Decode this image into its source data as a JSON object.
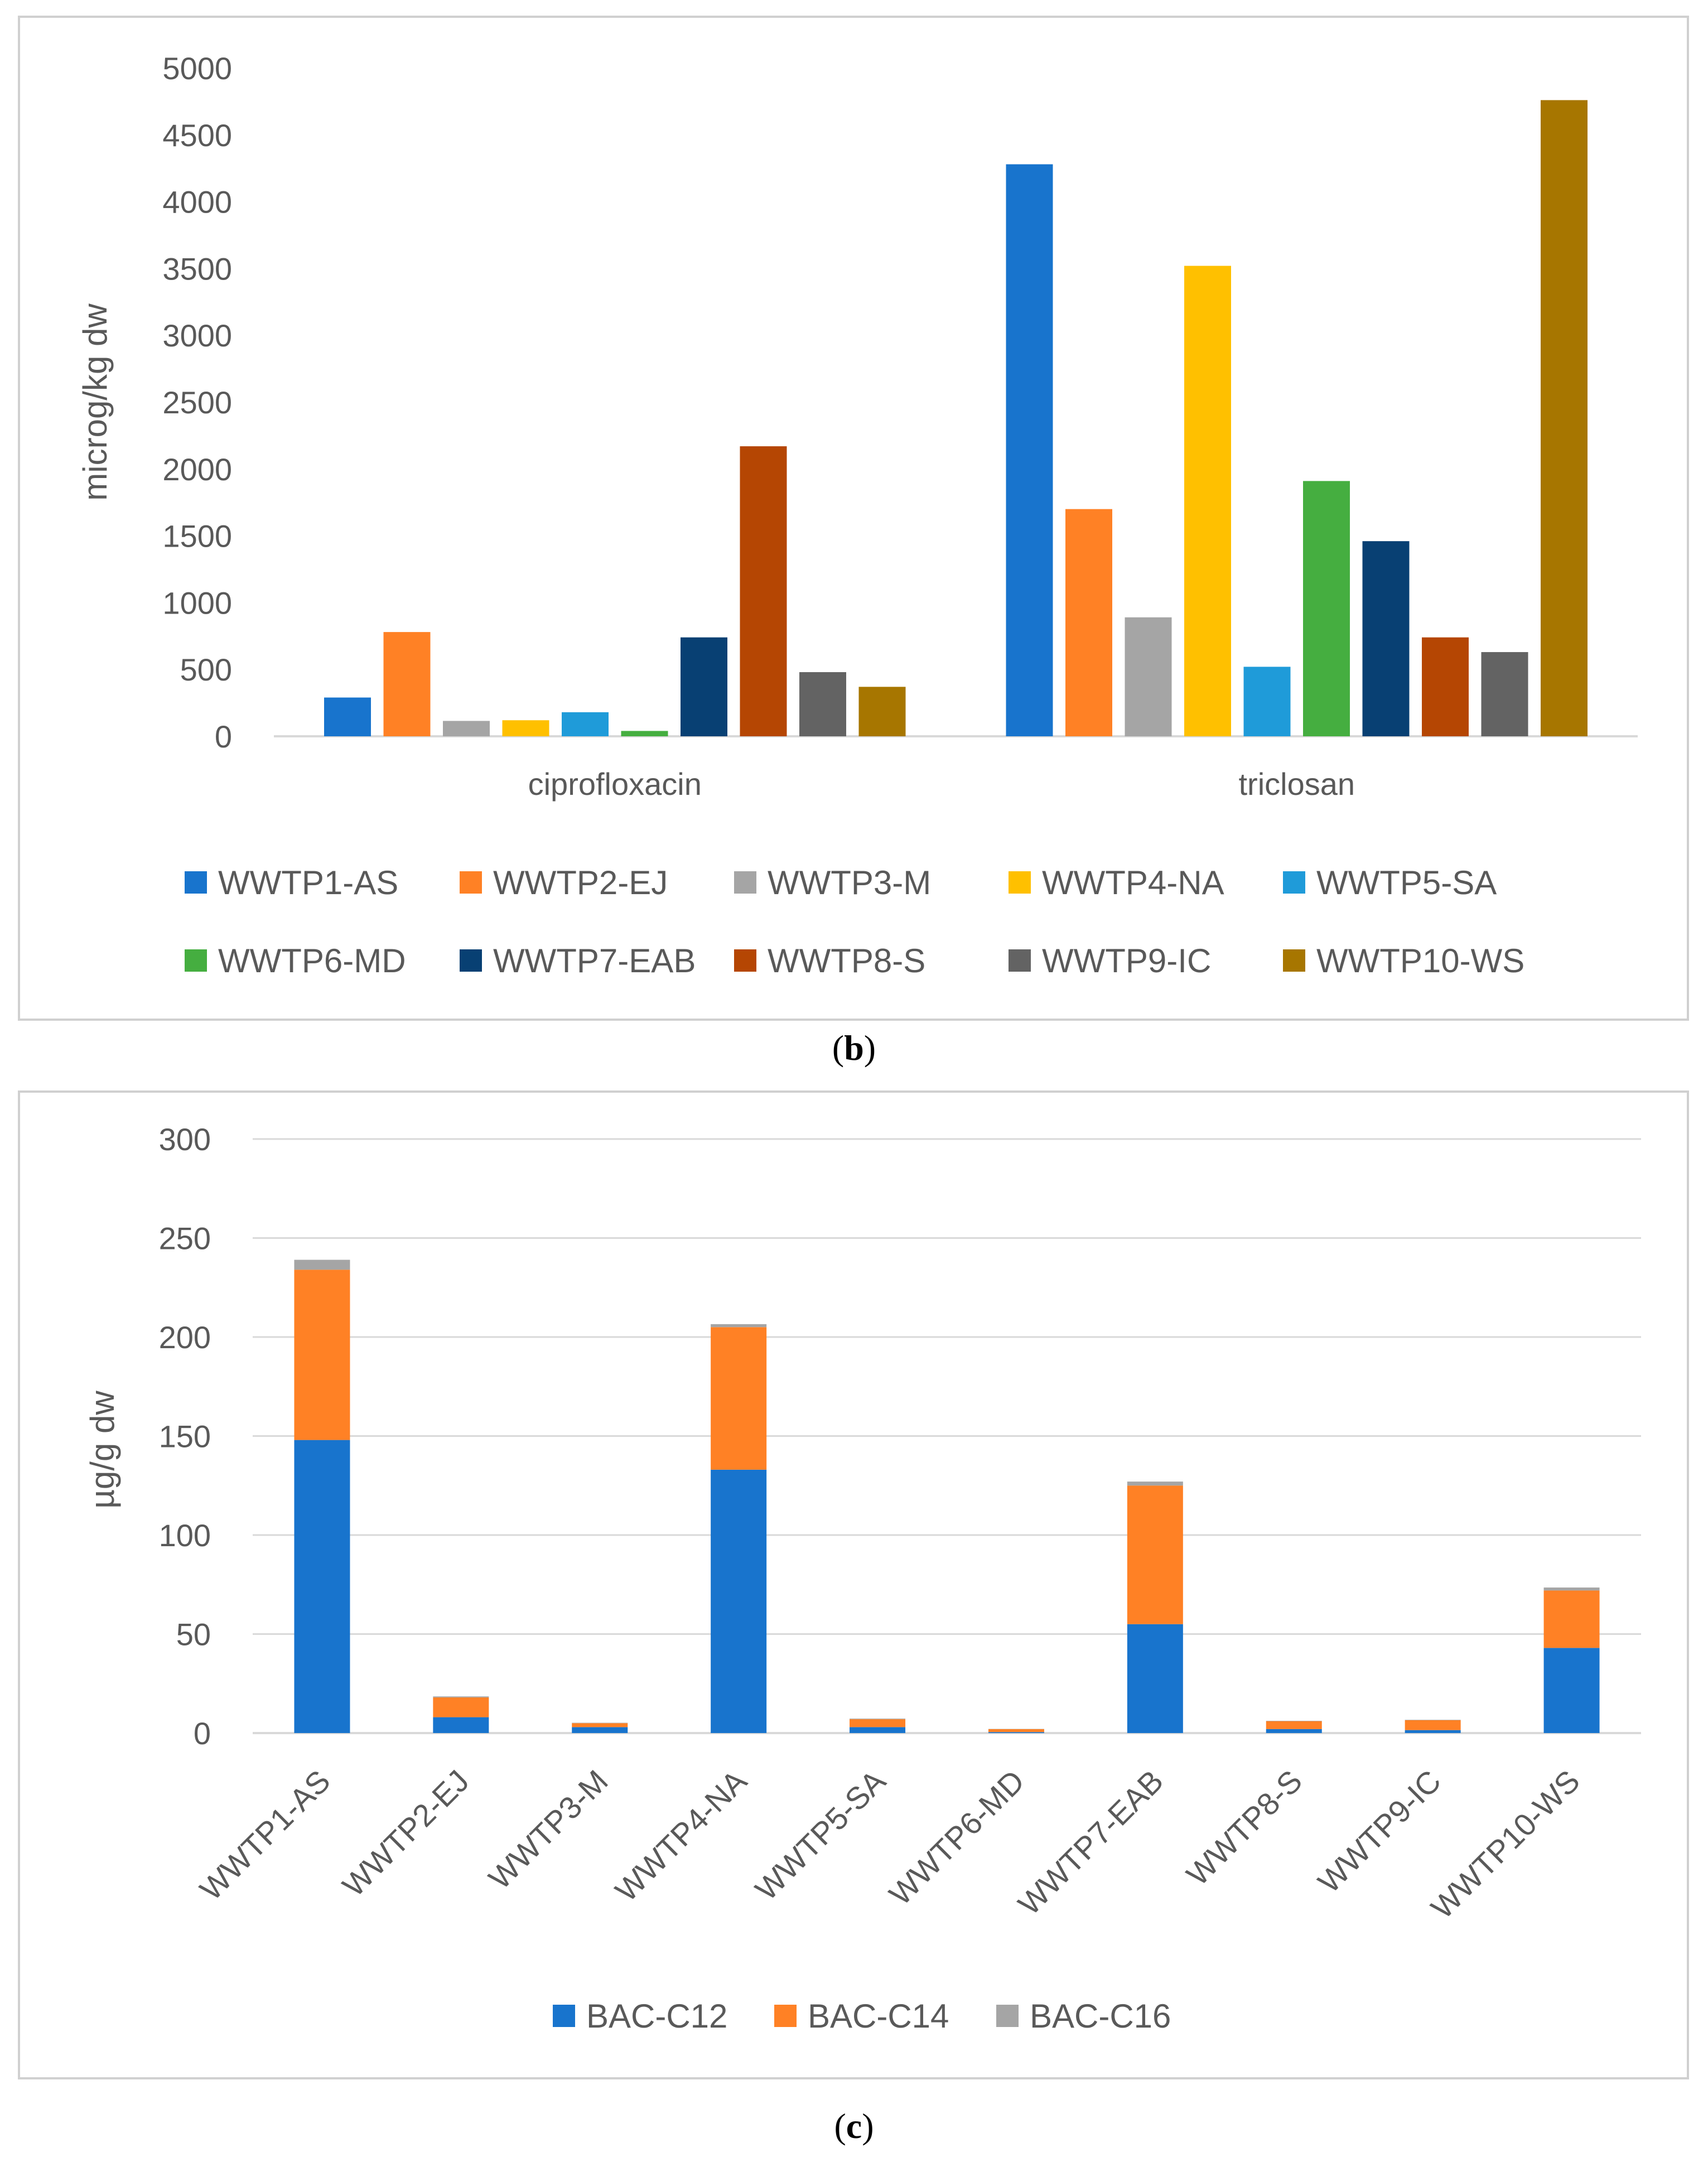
{
  "chart_data": [
    {
      "id": "b",
      "type": "bar",
      "caption": "b",
      "ylabel": "microg/kg dw",
      "ylim": [
        0,
        5000
      ],
      "yticks": [
        0,
        500,
        1000,
        1500,
        2000,
        2500,
        3000,
        3500,
        4000,
        4500,
        5000
      ],
      "grid": false,
      "legend_position": "bottom",
      "categories": [
        "ciprofloxacin",
        "triclosan"
      ],
      "series": [
        {
          "name": "WWTP1-AS",
          "color": "#1874CD",
          "values": [
            290,
            4280
          ]
        },
        {
          "name": "WWTP2-EJ",
          "color": "#FF8125",
          "values": [
            780,
            1700
          ]
        },
        {
          "name": "WWTP3-M",
          "color": "#A5A5A5",
          "values": [
            115,
            890
          ]
        },
        {
          "name": "WWTP4-NA",
          "color": "#FFC000",
          "values": [
            120,
            3520
          ]
        },
        {
          "name": "WWTP5-SA",
          "color": "#1F9BD9",
          "values": [
            180,
            520
          ]
        },
        {
          "name": "WWTP6-MD",
          "color": "#45AE40",
          "values": [
            40,
            1910
          ]
        },
        {
          "name": "WWTP7-EAB",
          "color": "#084073",
          "values": [
            740,
            1460
          ]
        },
        {
          "name": "WWTP8-S",
          "color": "#B54603",
          "values": [
            2170,
            740
          ]
        },
        {
          "name": "WWTP9-IC",
          "color": "#636363",
          "values": [
            480,
            630
          ]
        },
        {
          "name": "WWTP10-WS",
          "color": "#A77600",
          "values": [
            370,
            4760
          ]
        }
      ]
    },
    {
      "id": "c",
      "type": "bar",
      "stacked": true,
      "caption": "c",
      "ylabel": "µg/g dw",
      "ylim": [
        0,
        300
      ],
      "yticks": [
        0,
        50,
        100,
        150,
        200,
        250,
        300
      ],
      "grid": true,
      "legend_position": "bottom",
      "categories": [
        "WWTP1-AS",
        "WWTP2-EJ",
        "WWTP3-M",
        "WWTP4-NA",
        "WWTP5-SA",
        "WWTP6-MD",
        "WWTP7-EAB",
        "WWTP8-S",
        "WWTP9-IC",
        "WWTP10-WS"
      ],
      "series": [
        {
          "name": "BAC-C12",
          "color": "#1874CD",
          "values": [
            148,
            8,
            3,
            133,
            3,
            0.5,
            55,
            2,
            1.5,
            43
          ]
        },
        {
          "name": "BAC-C14",
          "color": "#FF8125",
          "values": [
            86,
            10,
            2,
            72,
            4,
            1.5,
            70,
            4,
            5,
            29
          ]
        },
        {
          "name": "BAC-C16",
          "color": "#A5A5A5",
          "values": [
            5,
            0.5,
            0.2,
            1.5,
            0.3,
            0.1,
            2,
            0.2,
            0.2,
            1.5
          ]
        }
      ]
    }
  ]
}
